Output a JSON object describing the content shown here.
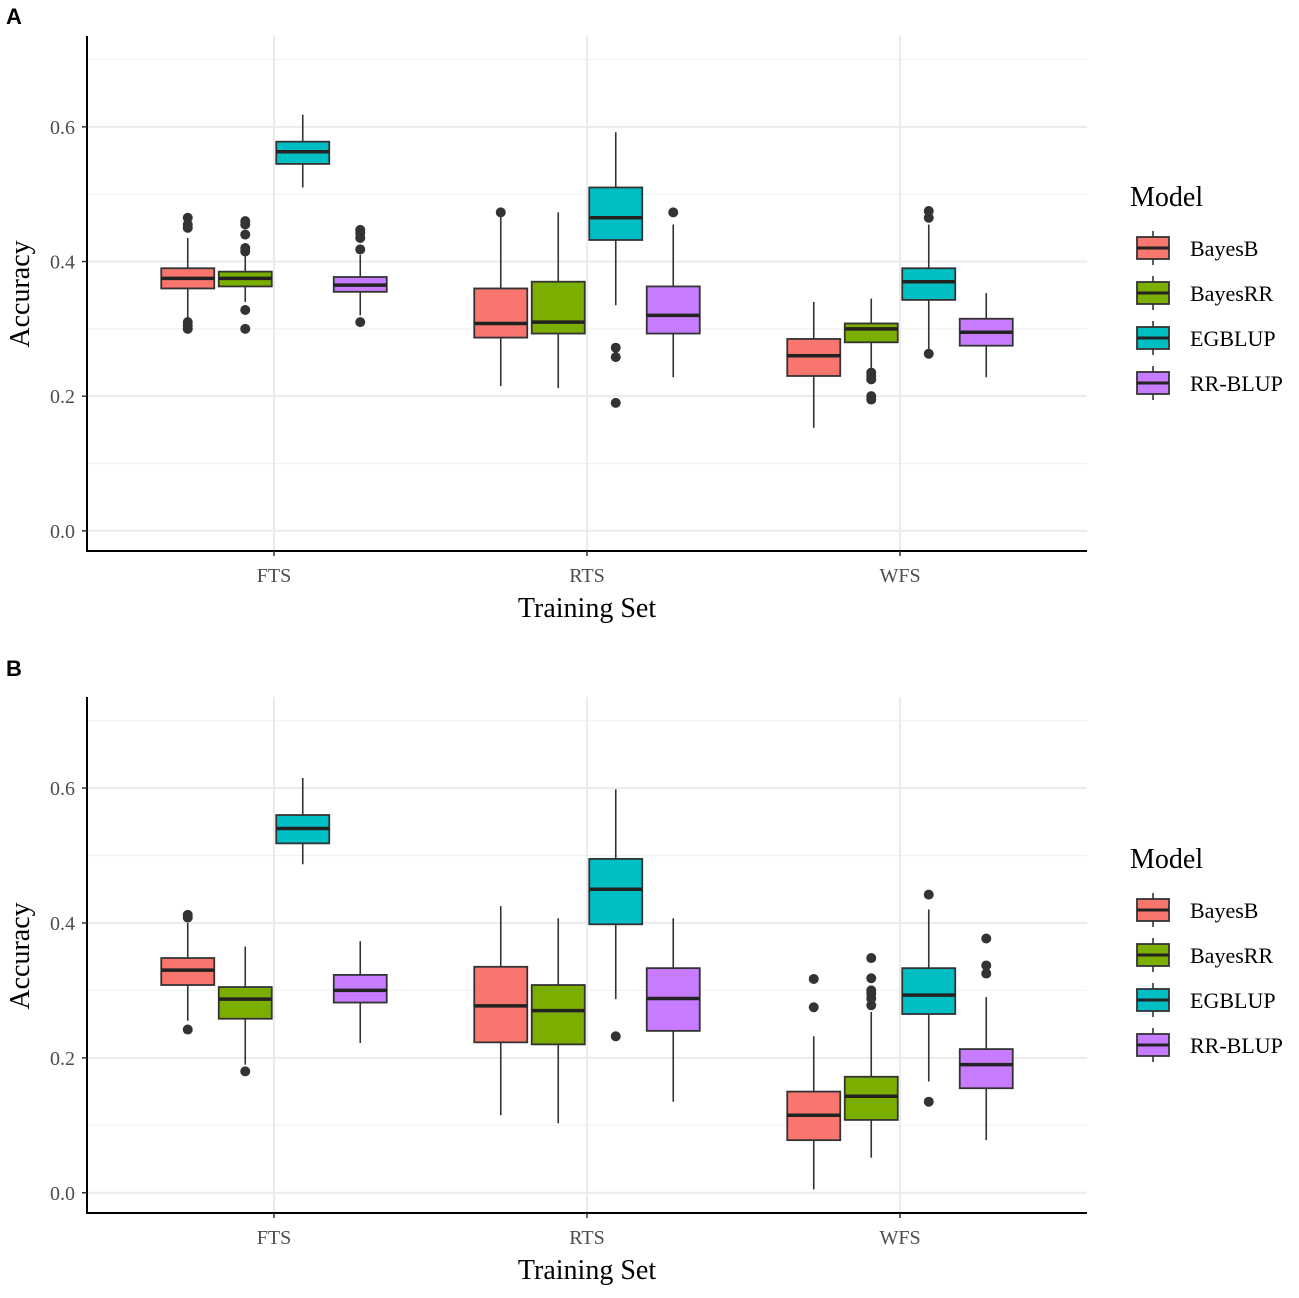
{
  "chart_data": [
    {
      "panel": "A",
      "type": "boxplot",
      "xlabel": "Training Set",
      "ylabel": "Accuracy",
      "ylim": [
        -0.03,
        0.735
      ],
      "yticks": [
        0.0,
        0.2,
        0.4,
        0.6
      ],
      "ytick_labels": [
        "0.0",
        "0.2",
        "0.4",
        "0.6"
      ],
      "categories": [
        "FTS",
        "RTS",
        "WFS"
      ],
      "legend_title": "Model",
      "series": [
        {
          "name": "BayesB",
          "color": "#F8766D",
          "boxes": [
            {
              "q1": 0.36,
              "median": 0.375,
              "q3": 0.39,
              "whisker_low": 0.315,
              "whisker_high": 0.435,
              "outliers": [
                0.3,
                0.305,
                0.31,
                0.45,
                0.455,
                0.465
              ]
            },
            {
              "q1": 0.287,
              "median": 0.308,
              "q3": 0.36,
              "whisker_low": 0.215,
              "whisker_high": 0.47,
              "outliers": [
                0.473
              ]
            },
            {
              "q1": 0.23,
              "median": 0.26,
              "q3": 0.285,
              "whisker_low": 0.153,
              "whisker_high": 0.34,
              "outliers": []
            }
          ]
        },
        {
          "name": "BayesRR",
          "color": "#7CAE00",
          "boxes": [
            {
              "q1": 0.363,
              "median": 0.375,
              "q3": 0.385,
              "whisker_low": 0.34,
              "whisker_high": 0.41,
              "outliers": [
                0.3,
                0.328,
                0.415,
                0.42,
                0.44,
                0.455,
                0.46
              ]
            },
            {
              "q1": 0.293,
              "median": 0.31,
              "q3": 0.37,
              "whisker_low": 0.212,
              "whisker_high": 0.473,
              "outliers": []
            },
            {
              "q1": 0.28,
              "median": 0.3,
              "q3": 0.308,
              "whisker_low": 0.24,
              "whisker_high": 0.345,
              "outliers": [
                0.195,
                0.2,
                0.225,
                0.23,
                0.235
              ]
            }
          ]
        },
        {
          "name": "EGBLUP",
          "color": "#00BFC4",
          "boxes": [
            {
              "q1": 0.545,
              "median": 0.563,
              "q3": 0.578,
              "whisker_low": 0.51,
              "whisker_high": 0.618,
              "outliers": []
            },
            {
              "q1": 0.432,
              "median": 0.465,
              "q3": 0.51,
              "whisker_low": 0.335,
              "whisker_high": 0.592,
              "outliers": [
                0.19,
                0.258,
                0.272
              ]
            },
            {
              "q1": 0.343,
              "median": 0.37,
              "q3": 0.39,
              "whisker_low": 0.27,
              "whisker_high": 0.455,
              "outliers": [
                0.263,
                0.465,
                0.475
              ]
            }
          ]
        },
        {
          "name": "RR-BLUP",
          "color": "#C77CFF",
          "boxes": [
            {
              "q1": 0.355,
              "median": 0.365,
              "q3": 0.377,
              "whisker_low": 0.32,
              "whisker_high": 0.41,
              "outliers": [
                0.31,
                0.418,
                0.435,
                0.442,
                0.447
              ]
            },
            {
              "q1": 0.293,
              "median": 0.32,
              "q3": 0.363,
              "whisker_low": 0.228,
              "whisker_high": 0.455,
              "outliers": [
                0.473
              ]
            },
            {
              "q1": 0.275,
              "median": 0.295,
              "q3": 0.315,
              "whisker_low": 0.228,
              "whisker_high": 0.353,
              "outliers": []
            }
          ]
        }
      ]
    },
    {
      "panel": "B",
      "type": "boxplot",
      "xlabel": "Training Set",
      "ylabel": "Accuracy",
      "ylim": [
        -0.03,
        0.735
      ],
      "yticks": [
        0.0,
        0.2,
        0.4,
        0.6
      ],
      "ytick_labels": [
        "0.0",
        "0.2",
        "0.4",
        "0.6"
      ],
      "categories": [
        "FTS",
        "RTS",
        "WFS"
      ],
      "legend_title": "Model",
      "series": [
        {
          "name": "BayesB",
          "color": "#F8766D",
          "boxes": [
            {
              "q1": 0.308,
              "median": 0.33,
              "q3": 0.348,
              "whisker_low": 0.255,
              "whisker_high": 0.4,
              "outliers": [
                0.242,
                0.408,
                0.412
              ]
            },
            {
              "q1": 0.223,
              "median": 0.277,
              "q3": 0.335,
              "whisker_low": 0.115,
              "whisker_high": 0.425,
              "outliers": []
            },
            {
              "q1": 0.078,
              "median": 0.115,
              "q3": 0.15,
              "whisker_low": 0.005,
              "whisker_high": 0.232,
              "outliers": [
                0.275,
                0.317
              ]
            }
          ]
        },
        {
          "name": "BayesRR",
          "color": "#7CAE00",
          "boxes": [
            {
              "q1": 0.258,
              "median": 0.287,
              "q3": 0.305,
              "whisker_low": 0.19,
              "whisker_high": 0.365,
              "outliers": [
                0.18
              ]
            },
            {
              "q1": 0.22,
              "median": 0.27,
              "q3": 0.308,
              "whisker_low": 0.103,
              "whisker_high": 0.407,
              "outliers": []
            },
            {
              "q1": 0.108,
              "median": 0.143,
              "q3": 0.172,
              "whisker_low": 0.052,
              "whisker_high": 0.268,
              "outliers": [
                0.278,
                0.288,
                0.295,
                0.3,
                0.318,
                0.348
              ]
            }
          ]
        },
        {
          "name": "EGBLUP",
          "color": "#00BFC4",
          "boxes": [
            {
              "q1": 0.518,
              "median": 0.54,
              "q3": 0.56,
              "whisker_low": 0.487,
              "whisker_high": 0.615,
              "outliers": []
            },
            {
              "q1": 0.398,
              "median": 0.45,
              "q3": 0.495,
              "whisker_low": 0.287,
              "whisker_high": 0.598,
              "outliers": [
                0.232
              ]
            },
            {
              "q1": 0.265,
              "median": 0.293,
              "q3": 0.333,
              "whisker_low": 0.165,
              "whisker_high": 0.42,
              "outliers": [
                0.135,
                0.442
              ]
            }
          ]
        },
        {
          "name": "RR-BLUP",
          "color": "#C77CFF",
          "boxes": [
            {
              "q1": 0.282,
              "median": 0.3,
              "q3": 0.323,
              "whisker_low": 0.222,
              "whisker_high": 0.373,
              "outliers": []
            },
            {
              "q1": 0.24,
              "median": 0.288,
              "q3": 0.333,
              "whisker_low": 0.135,
              "whisker_high": 0.407,
              "outliers": []
            },
            {
              "q1": 0.155,
              "median": 0.19,
              "q3": 0.213,
              "whisker_low": 0.078,
              "whisker_high": 0.29,
              "outliers": [
                0.325,
                0.337,
                0.377
              ]
            }
          ]
        }
      ]
    }
  ]
}
